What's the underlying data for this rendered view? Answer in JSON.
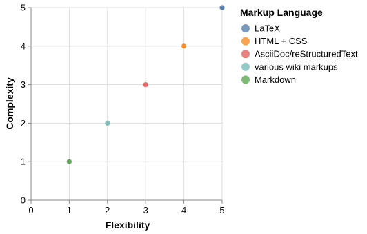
{
  "chart_data": {
    "type": "scatter",
    "title": "",
    "xlabel": "Flexibility",
    "ylabel": "Complexity",
    "xlim": [
      0,
      5
    ],
    "ylim": [
      0,
      5
    ],
    "xticks": [
      "0",
      "1",
      "2",
      "3",
      "4",
      "5"
    ],
    "yticks": [
      "0",
      "1",
      "2",
      "3",
      "4",
      "5"
    ],
    "grid": true,
    "legend": {
      "title": "Markup Language",
      "placement": "right"
    },
    "series": [
      {
        "name": "LaTeX",
        "color": "#4c78a8",
        "x": [
          5
        ],
        "y": [
          5
        ]
      },
      {
        "name": "HTML + CSS",
        "color": "#f58518",
        "x": [
          4
        ],
        "y": [
          4
        ]
      },
      {
        "name": "AsciiDoc/reStructuredText",
        "color": "#e45756",
        "x": [
          3
        ],
        "y": [
          3
        ]
      },
      {
        "name": "various wiki markups",
        "color": "#72b7b2",
        "x": [
          2
        ],
        "y": [
          2
        ]
      },
      {
        "name": "Markdown",
        "color": "#54a24b",
        "x": [
          1
        ],
        "y": [
          1
        ]
      }
    ]
  }
}
